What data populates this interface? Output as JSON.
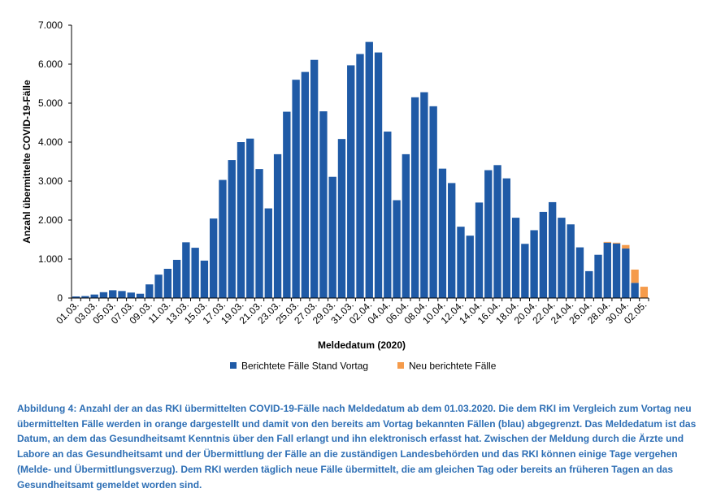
{
  "chart_data": {
    "type": "bar",
    "stacked": true,
    "xlabel": "Meldedatum (2020)",
    "ylabel": "Anzahl übermittelte COVID-19-Fälle",
    "ylim": [
      0,
      7000
    ],
    "yticks": [
      "0",
      "1.000",
      "2.000",
      "3.000",
      "4.000",
      "5.000",
      "6.000",
      "7.000"
    ],
    "grid": false,
    "legend_position": "bottom",
    "categories": [
      "01.03.",
      "02.03.",
      "03.03.",
      "04.03.",
      "05.03.",
      "06.03.",
      "07.03.",
      "08.03.",
      "09.03.",
      "10.03.",
      "11.03.",
      "12.03.",
      "13.03.",
      "14.03.",
      "15.03.",
      "16.03.",
      "17.03.",
      "18.03.",
      "19.03.",
      "20.03.",
      "21.03.",
      "22.03.",
      "23.03.",
      "24.03.",
      "25.03.",
      "26.03.",
      "27.03.",
      "28.03.",
      "29.03.",
      "30.03.",
      "31.03.",
      "01.04.",
      "02.04.",
      "03.04.",
      "04.04.",
      "05.04.",
      "06.04.",
      "07.04.",
      "08.04.",
      "09.04.",
      "10.04.",
      "11.04.",
      "12.04.",
      "13.04.",
      "14.04.",
      "15.04.",
      "16.04.",
      "17.04.",
      "18.04.",
      "19.04.",
      "20.04.",
      "21.04.",
      "22.04.",
      "23.04.",
      "24.04.",
      "25.04.",
      "26.04.",
      "27.04.",
      "28.04.",
      "29.04.",
      "30.04.",
      "01.05.",
      "02.05."
    ],
    "xticks_shown": [
      "01.03.",
      "03.03.",
      "05.03.",
      "07.03.",
      "09.03.",
      "11.03.",
      "13.03.",
      "15.03.",
      "17.03.",
      "19.03.",
      "21.03.",
      "23.03.",
      "25.03.",
      "27.03.",
      "29.03.",
      "31.03.",
      "02.04.",
      "04.04.",
      "06.04.",
      "08.04.",
      "10.04.",
      "12.04.",
      "14.04.",
      "16.04.",
      "18.04.",
      "20.04.",
      "22.04.",
      "24.04.",
      "26.04.",
      "28.04.",
      "30.04.",
      "02.05."
    ],
    "series": [
      {
        "name": "Berichtete Fälle Stand Vortag",
        "color": "#1f5aa6",
        "values": [
          40,
          50,
          90,
          150,
          200,
          180,
          140,
          110,
          350,
          600,
          750,
          980,
          1430,
          1290,
          960,
          2040,
          3030,
          3540,
          4000,
          4090,
          3310,
          2300,
          3690,
          4780,
          5600,
          5800,
          6110,
          4790,
          3110,
          4080,
          5970,
          6260,
          6570,
          6300,
          4270,
          2510,
          3690,
          5150,
          5280,
          4920,
          3320,
          2950,
          1830,
          1600,
          2450,
          3280,
          3410,
          3070,
          2060,
          1390,
          1740,
          2210,
          2460,
          2060,
          1890,
          1300,
          690,
          1110,
          1420,
          1400,
          1270,
          390,
          0
        ]
      },
      {
        "name": "Neu berichtete Fälle",
        "color": "#f59b4b",
        "values": [
          0,
          0,
          0,
          0,
          0,
          0,
          0,
          0,
          0,
          0,
          0,
          0,
          0,
          0,
          0,
          0,
          0,
          0,
          0,
          0,
          0,
          0,
          0,
          0,
          0,
          0,
          0,
          0,
          0,
          0,
          0,
          0,
          0,
          0,
          0,
          0,
          0,
          0,
          0,
          0,
          0,
          0,
          0,
          0,
          0,
          0,
          0,
          0,
          0,
          0,
          0,
          0,
          0,
          0,
          0,
          0,
          0,
          0,
          20,
          20,
          90,
          340,
          290
        ]
      }
    ]
  },
  "caption": "Abbildung 4: Anzahl der an das RKI übermittelten COVID-19-Fälle nach Meldedatum ab dem 01.03.2020. Die dem RKI im Vergleich zum Vortag neu übermittelten Fälle werden in orange dargestellt und damit von den bereits am Vortag bekannten Fällen (blau) abgegrenzt. Das Meldedatum ist das Datum, an dem das Gesundheitsamt Kenntnis über den Fall erlangt und ihn elektronisch erfasst hat. Zwischen der Meldung durch die Ärzte und Labore an das Gesundheitsamt und der Übermittlung der Fälle an die zuständigen Landesbehörden und das RKI können einige Tage vergehen (Melde- und Übermittlungsverzug). Dem RKI werden täglich neue Fälle übermittelt, die am gleichen Tag oder bereits an früheren Tagen an das Gesundheitsamt gemeldet worden sind."
}
